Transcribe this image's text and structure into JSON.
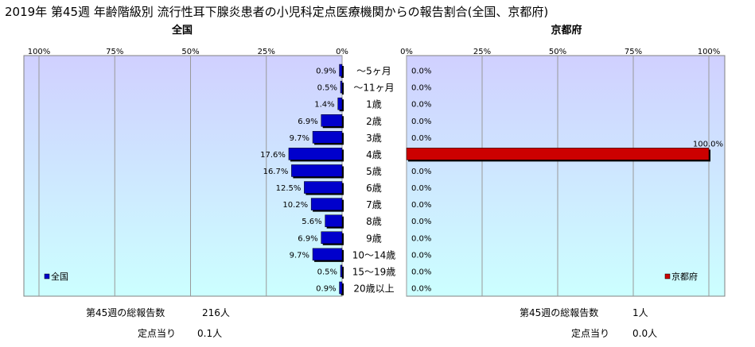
{
  "chart_data": {
    "type": "bar",
    "orientation": "horizontal",
    "title": "2019年 第45週 年齢階級別 流行性耳下腺炎患者の小児科定点医療機関からの報告割合(全国、京都府)",
    "categories": [
      "～5ヶ月",
      "～11ヶ月",
      "1歳",
      "2歳",
      "3歳",
      "4歳",
      "5歳",
      "6歳",
      "7歳",
      "8歳",
      "9歳",
      "10～14歳",
      "15～19歳",
      "20歳以上"
    ],
    "panels": [
      {
        "name": "全国",
        "direction": "left",
        "ticks": [
          "100%",
          "75%",
          "50%",
          "25%",
          "0%"
        ],
        "xlim": [
          0,
          100
        ],
        "color": "#0000cc",
        "values": [
          0.9,
          0.5,
          1.4,
          6.9,
          9.7,
          17.6,
          16.7,
          12.5,
          10.2,
          5.6,
          6.9,
          9.7,
          0.5,
          0.9
        ],
        "labels": [
          "0.9%",
          "0.5%",
          "1.4%",
          "6.9%",
          "9.7%",
          "17.6%",
          "16.7%",
          "12.5%",
          "10.2%",
          "5.6%",
          "6.9%",
          "9.7%",
          "0.5%",
          "0.9%"
        ],
        "legend": "全国",
        "legend_position": "bottom-left"
      },
      {
        "name": "京都府",
        "direction": "right",
        "ticks": [
          "0%",
          "25%",
          "50%",
          "75%",
          "100%"
        ],
        "xlim": [
          0,
          100
        ],
        "color": "#cc0000",
        "values": [
          0,
          0,
          0,
          0,
          0,
          100,
          0,
          0,
          0,
          0,
          0,
          0,
          0,
          0
        ],
        "labels": [
          "0.0%",
          "0.0%",
          "0.0%",
          "0.0%",
          "0.0%",
          "100.0%",
          "0.0%",
          "0.0%",
          "0.0%",
          "0.0%",
          "0.0%",
          "0.0%",
          "0.0%",
          "0.0%"
        ],
        "legend": "京都府",
        "legend_position": "bottom-right"
      }
    ],
    "grid": true
  },
  "stats": {
    "national": {
      "total_label": "第45週の総報告数",
      "total_value": "216人",
      "per_site_label": "定点当り",
      "per_site_value": "0.1人"
    },
    "kyoto": {
      "total_label": "第45週の総報告数",
      "total_value": "1人",
      "per_site_label": "定点当り",
      "per_site_value": "0.0人"
    }
  },
  "colors": {
    "plot_bg_top": "#d0d0ff",
    "plot_bg_bottom": "#ccffff",
    "grid": "#999999"
  }
}
